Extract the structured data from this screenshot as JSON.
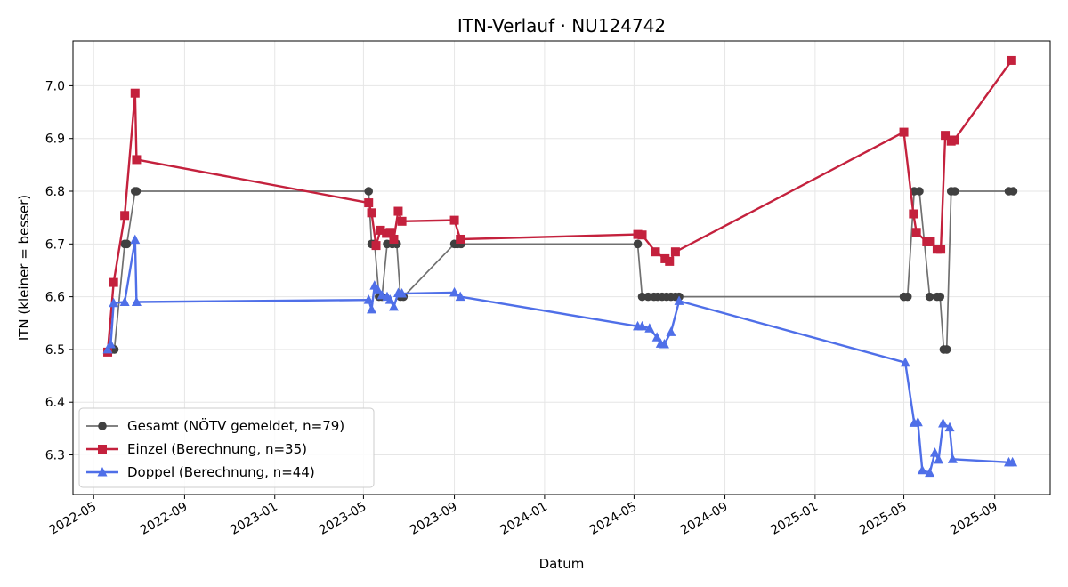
{
  "chart_data": {
    "type": "line",
    "title": "ITN-Verlauf · NU124742",
    "xlabel": "Datum",
    "ylabel": "ITN  (kleiner = besser)",
    "x_type": "date",
    "xlim": [
      "2022-04-03",
      "2025-11-15"
    ],
    "ylim": [
      6.225,
      7.085
    ],
    "grid": true,
    "legend_position": "lower-left",
    "x_ticks": [
      "2022-05-01",
      "2022-09-01",
      "2023-01-01",
      "2023-05-01",
      "2023-09-01",
      "2024-01-01",
      "2024-05-01",
      "2024-09-01",
      "2025-01-01",
      "2025-05-01",
      "2025-09-01"
    ],
    "x_tick_labels": [
      "2022-05",
      "2022-09",
      "2023-01",
      "2023-05",
      "2023-09",
      "2024-01",
      "2024-05",
      "2024-09",
      "2025-01",
      "2025-05",
      "2025-09"
    ],
    "y_ticks": [
      6.3,
      6.4,
      6.5,
      6.6,
      6.7,
      6.8,
      6.9,
      7.0
    ],
    "y_tick_labels": [
      "6.3",
      "6.4",
      "6.5",
      "6.6",
      "6.7",
      "6.8",
      "6.9",
      "7.0"
    ],
    "series": [
      {
        "name": "Gesamt (NÖTV gemeldet, n=79)",
        "color": "#707070",
        "marker": "circle",
        "points": [
          [
            "2022-05-26",
            6.5
          ],
          [
            "2022-05-29",
            6.5
          ],
          [
            "2022-06-12",
            6.7
          ],
          [
            "2022-06-15",
            6.7
          ],
          [
            "2022-06-26",
            6.8
          ],
          [
            "2022-06-28",
            6.8
          ],
          [
            "2023-05-08",
            6.8
          ],
          [
            "2023-05-12",
            6.7
          ],
          [
            "2023-05-16",
            6.7
          ],
          [
            "2023-05-22",
            6.6
          ],
          [
            "2023-05-26",
            6.6
          ],
          [
            "2023-06-02",
            6.7
          ],
          [
            "2023-06-09",
            6.7
          ],
          [
            "2023-06-15",
            6.7
          ],
          [
            "2023-06-20",
            6.6
          ],
          [
            "2023-06-24",
            6.6
          ],
          [
            "2023-09-01",
            6.7
          ],
          [
            "2023-09-05",
            6.7
          ],
          [
            "2023-09-10",
            6.7
          ],
          [
            "2024-05-06",
            6.7
          ],
          [
            "2024-05-12",
            6.6
          ],
          [
            "2024-05-20",
            6.6
          ],
          [
            "2024-05-28",
            6.6
          ],
          [
            "2024-06-02",
            6.6
          ],
          [
            "2024-06-08",
            6.6
          ],
          [
            "2024-06-14",
            6.6
          ],
          [
            "2024-06-20",
            6.6
          ],
          [
            "2024-06-26",
            6.6
          ],
          [
            "2024-07-01",
            6.6
          ],
          [
            "2025-05-01",
            6.6
          ],
          [
            "2025-05-06",
            6.6
          ],
          [
            "2025-05-15",
            6.8
          ],
          [
            "2025-05-22",
            6.8
          ],
          [
            "2025-06-05",
            6.6
          ],
          [
            "2025-06-15",
            6.6
          ],
          [
            "2025-06-19",
            6.6
          ],
          [
            "2025-06-24",
            6.5
          ],
          [
            "2025-06-28",
            6.5
          ],
          [
            "2025-07-04",
            6.8
          ],
          [
            "2025-07-09",
            6.8
          ],
          [
            "2025-09-20",
            6.8
          ],
          [
            "2025-09-26",
            6.8
          ]
        ]
      },
      {
        "name": "Einzel (Berechnung, n=35)",
        "color": "#c4213d",
        "marker": "square",
        "points": [
          [
            "2022-05-20",
            6.495
          ],
          [
            "2022-05-28",
            6.627
          ],
          [
            "2022-06-12",
            6.754
          ],
          [
            "2022-06-26",
            6.986
          ],
          [
            "2022-06-28",
            6.86
          ],
          [
            "2023-05-08",
            6.778
          ],
          [
            "2023-05-12",
            6.759
          ],
          [
            "2023-05-18",
            6.697
          ],
          [
            "2023-05-24",
            6.726
          ],
          [
            "2023-06-01",
            6.72
          ],
          [
            "2023-06-06",
            6.722
          ],
          [
            "2023-06-11",
            6.709
          ],
          [
            "2023-06-17",
            6.762
          ],
          [
            "2023-06-22",
            6.743
          ],
          [
            "2023-09-01",
            6.745
          ],
          [
            "2023-09-09",
            6.709
          ],
          [
            "2024-05-06",
            6.718
          ],
          [
            "2024-05-12",
            6.717
          ],
          [
            "2024-05-30",
            6.685
          ],
          [
            "2024-06-12",
            6.672
          ],
          [
            "2024-06-18",
            6.667
          ],
          [
            "2024-06-26",
            6.685
          ],
          [
            "2025-05-01",
            6.912
          ],
          [
            "2025-05-14",
            6.757
          ],
          [
            "2025-05-18",
            6.722
          ],
          [
            "2025-06-01",
            6.704
          ],
          [
            "2025-06-06",
            6.704
          ],
          [
            "2025-06-15",
            6.69
          ],
          [
            "2025-06-20",
            6.69
          ],
          [
            "2025-06-26",
            6.906
          ],
          [
            "2025-07-04",
            6.895
          ],
          [
            "2025-07-08",
            6.897
          ],
          [
            "2025-09-24",
            7.048
          ]
        ]
      },
      {
        "name": "Doppel (Berechnung, n=44)",
        "color": "#4f6fe8",
        "marker": "triangle",
        "points": [
          [
            "2022-05-20",
            6.5
          ],
          [
            "2022-05-24",
            6.51
          ],
          [
            "2022-05-28",
            6.588
          ],
          [
            "2022-06-12",
            6.59
          ],
          [
            "2022-06-26",
            6.708
          ],
          [
            "2022-06-28",
            6.59
          ],
          [
            "2023-05-08",
            6.594
          ],
          [
            "2023-05-12",
            6.576
          ],
          [
            "2023-05-16",
            6.621
          ],
          [
            "2023-05-20",
            6.614
          ],
          [
            "2023-05-26",
            6.603
          ],
          [
            "2023-06-02",
            6.6
          ],
          [
            "2023-06-06",
            6.594
          ],
          [
            "2023-06-11",
            6.581
          ],
          [
            "2023-06-17",
            6.607
          ],
          [
            "2023-06-22",
            6.606
          ],
          [
            "2023-09-01",
            6.608
          ],
          [
            "2023-09-09",
            6.6
          ],
          [
            "2024-05-06",
            6.544
          ],
          [
            "2024-05-12",
            6.544
          ],
          [
            "2024-05-22",
            6.54
          ],
          [
            "2024-06-01",
            6.523
          ],
          [
            "2024-06-06",
            6.511
          ],
          [
            "2024-06-11",
            6.51
          ],
          [
            "2024-06-20",
            6.533
          ],
          [
            "2024-07-01",
            6.592
          ],
          [
            "2025-05-03",
            6.475
          ],
          [
            "2025-05-15",
            6.361
          ],
          [
            "2025-05-20",
            6.362
          ],
          [
            "2025-05-26",
            6.271
          ],
          [
            "2025-06-05",
            6.266
          ],
          [
            "2025-06-12",
            6.304
          ],
          [
            "2025-06-17",
            6.291
          ],
          [
            "2025-06-23",
            6.36
          ],
          [
            "2025-07-02",
            6.352
          ],
          [
            "2025-07-06",
            6.292
          ],
          [
            "2025-09-20",
            6.286
          ],
          [
            "2025-09-25",
            6.286
          ]
        ]
      }
    ]
  }
}
